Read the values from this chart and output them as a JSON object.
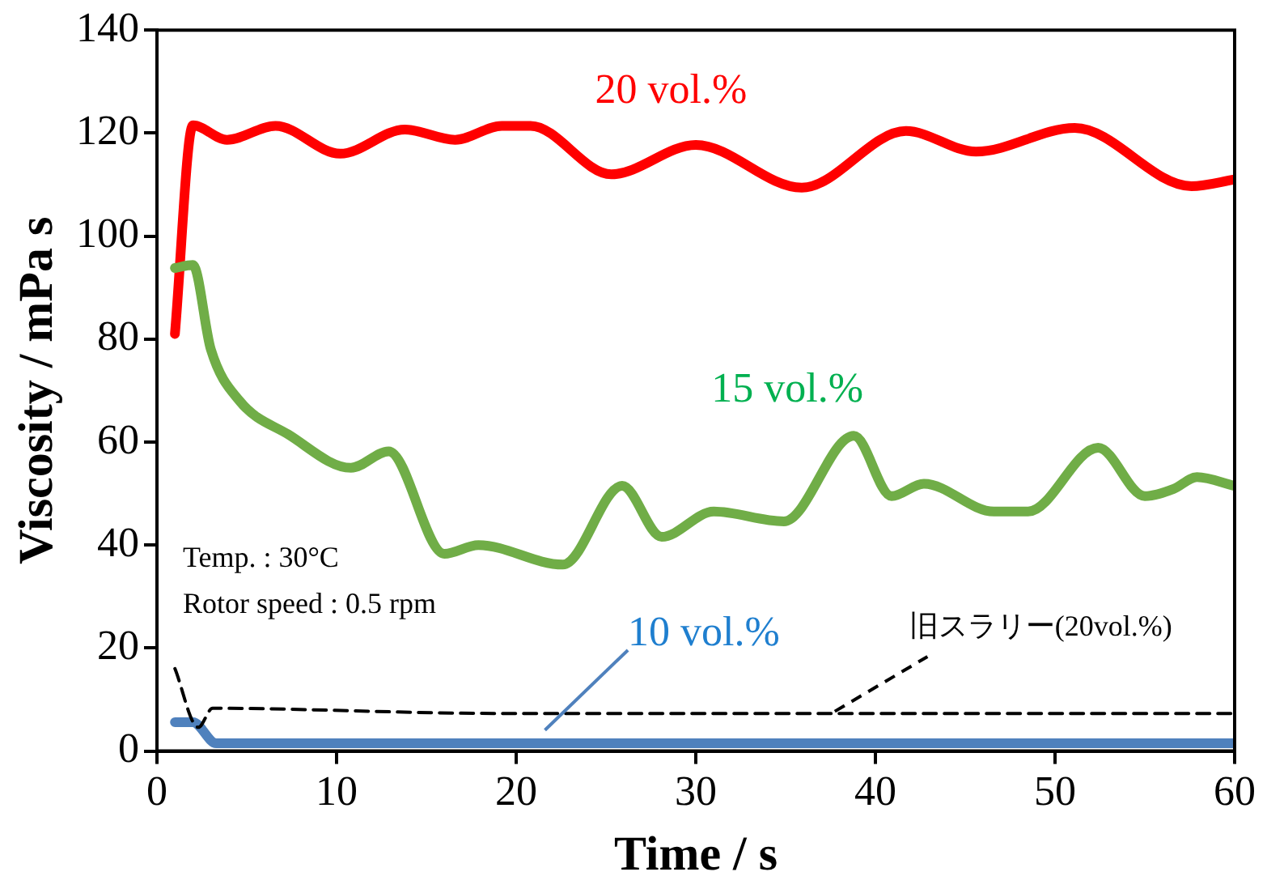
{
  "chart_data": {
    "type": "line",
    "xlabel": "Time / s",
    "ylabel": "Viscosity / mPa s",
    "xlim": [
      0,
      60
    ],
    "xticks": [
      0,
      10,
      20,
      30,
      40,
      50,
      60
    ],
    "ylim": [
      0,
      140
    ],
    "yticks": [
      0,
      20,
      40,
      60,
      80,
      100,
      120,
      140
    ],
    "grid": false,
    "legend": false,
    "marker": "none",
    "line_style": "solid",
    "annotations": [
      "Temp. : 30°C",
      "Rotor speed : 0.5 rpm"
    ],
    "series": [
      {
        "name": "20 vol.%",
        "color": "#ff0000",
        "x": [
          1,
          2,
          3.9,
          6.6,
          10.2,
          13.8,
          16.6,
          19.2,
          20.8,
          25.3,
          30,
          35.9,
          41.7,
          45.6,
          51.1,
          57.6,
          60
        ],
        "values": [
          81,
          121.5,
          118.7,
          121.4,
          116,
          120.7,
          118.7,
          121.4,
          121.4,
          112,
          117.7,
          109.4,
          120.4,
          116.4,
          121,
          109.7,
          111
        ]
      },
      {
        "name": "15 vol.%",
        "color": "#70ad47",
        "x": [
          1,
          2,
          3,
          4.6,
          7.3,
          10.8,
          12.9,
          16,
          17.9,
          22.6,
          25.9,
          28.1,
          31,
          34.9,
          38.8,
          40.9,
          42.7,
          46.6,
          48.5,
          52.4,
          55,
          56.6,
          57.9,
          60
        ],
        "values": [
          93.8,
          94.4,
          78,
          68,
          61.5,
          55,
          58.2,
          38.3,
          40,
          36.2,
          51.5,
          41.6,
          46.5,
          44.6,
          61.2,
          49.5,
          51.9,
          46.5,
          46.5,
          58.9,
          49.5,
          50.9,
          53.2,
          51.5
        ]
      },
      {
        "name": "10 vol.%",
        "color": "#4f81bd",
        "x": [
          1,
          2,
          3.3,
          10,
          20,
          30,
          40,
          50,
          60
        ],
        "values": [
          5.6,
          5.6,
          1.5,
          1.5,
          1.5,
          1.5,
          1.5,
          1.5,
          1.5
        ]
      },
      {
        "name": "旧スラリー(20vol.%)",
        "color": "#000000",
        "line_style": "dashed",
        "x": [
          1,
          2.3,
          3.1,
          19,
          40,
          60
        ],
        "values": [
          16,
          4.6,
          8.3,
          7.3,
          7.3,
          7.3
        ]
      }
    ]
  }
}
